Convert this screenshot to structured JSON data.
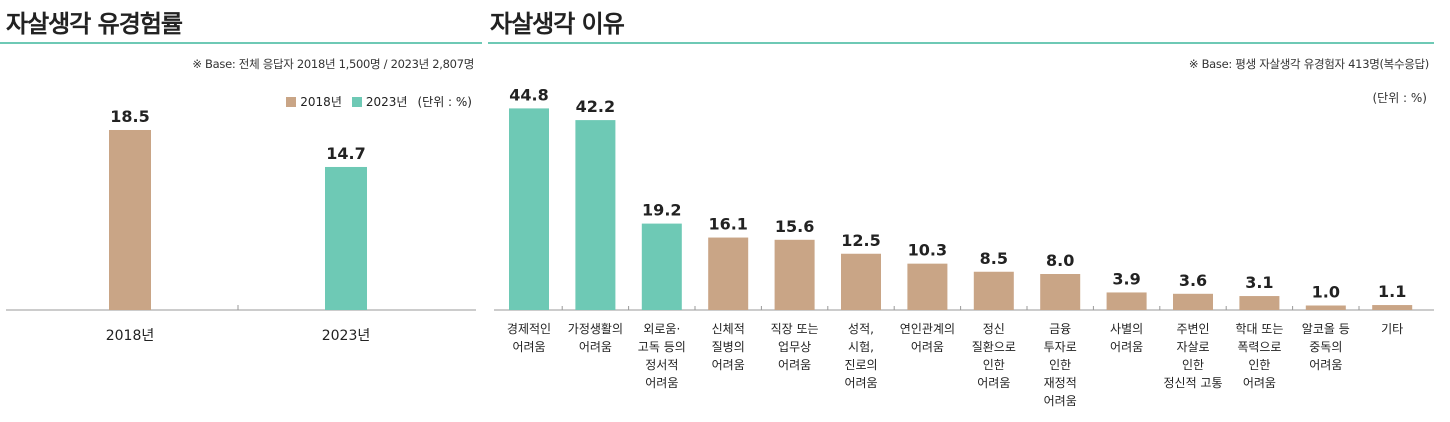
{
  "colors": {
    "teal": "#6ec9b5",
    "tan": "#c9a586",
    "axis": "#999999",
    "rule": "#6ec9b5"
  },
  "left": {
    "title": "자살생각 유경험률",
    "note": "※ Base: 전체 응답자 2018년 1,500명 / 2023년 2,807명",
    "legend": [
      "2018년",
      "2023년"
    ],
    "unit": "(단위 : %)"
  },
  "right": {
    "title": "자살생각 이유",
    "note": "※ Base: 평생 자살생각 유경험자 413명(복수응답)",
    "unit": "(단위 : %)"
  },
  "chart_data": [
    {
      "type": "bar",
      "title": "자살생각 유경험률",
      "categories": [
        "2018년",
        "2023년"
      ],
      "series": [
        {
          "name": "2018년",
          "values": [
            18.5,
            null
          ],
          "color": "#c9a586"
        },
        {
          "name": "2023년",
          "values": [
            null,
            14.7
          ],
          "color": "#6ec9b5"
        }
      ],
      "ylim": [
        0,
        20
      ],
      "legend": "top-right",
      "grid": false
    },
    {
      "type": "bar",
      "title": "자살생각 이유",
      "categories": [
        [
          "경제적인",
          "어려움"
        ],
        [
          "가정생활의",
          "어려움"
        ],
        [
          "외로움·",
          "고독 등의",
          "정서적",
          "어려움"
        ],
        [
          "신체적",
          "질병의",
          "어려움"
        ],
        [
          "직장 또는",
          "업무상",
          "어려움"
        ],
        [
          "성적,",
          "시험,",
          "진로의",
          "어려움"
        ],
        [
          "연인관계의",
          "어려움"
        ],
        [
          "정신",
          "질환으로",
          "인한",
          "어려움"
        ],
        [
          "금융",
          "투자로",
          "인한",
          "재정적",
          "어려움"
        ],
        [
          "사별의",
          "어려움"
        ],
        [
          "주변인",
          "자살로",
          "인한",
          "정신적 고통"
        ],
        [
          "학대 또는",
          "폭력으로",
          "인한",
          "어려움"
        ],
        [
          "알코올 등",
          "중독의",
          "어려움"
        ],
        [
          "기타"
        ]
      ],
      "values": [
        44.8,
        42.2,
        19.2,
        16.1,
        15.6,
        12.5,
        10.3,
        8.5,
        8.0,
        3.9,
        3.6,
        3.1,
        1.0,
        1.1
      ],
      "value_labels": [
        "44.8",
        "42.2",
        "19.2",
        "16.1",
        "15.6",
        "12.5",
        "10.3",
        "8.5",
        "8.0",
        "3.9",
        "3.6",
        "3.1",
        "1.0",
        "1.1"
      ],
      "highlight": [
        true,
        true,
        true,
        false,
        false,
        false,
        false,
        false,
        false,
        false,
        false,
        false,
        false,
        false
      ],
      "ylim": [
        0,
        50
      ],
      "grid": false
    }
  ]
}
